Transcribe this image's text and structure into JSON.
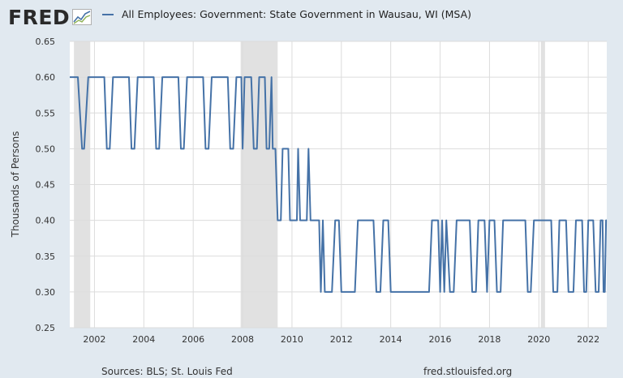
{
  "header": {
    "logo_text": "FRED",
    "series_title": "All Employees: Government: State Government in Wausau, WI (MSA)"
  },
  "footer": {
    "source": "Sources: BLS; St. Louis Fed",
    "url": "fred.stlouisfed.org"
  },
  "colors": {
    "series": "#4572a7",
    "recession": "#e1e1e1",
    "plot_background": "#ffffff",
    "page_background": "#e1e9f0",
    "gridline": "#dcdcdc"
  },
  "chart_data": {
    "type": "line",
    "title": "All Employees: Government: State Government in Wausau, WI (MSA)",
    "ylabel": "Thousands of Persons",
    "xlabel": "",
    "xlim": [
      2001.0,
      2022.75
    ],
    "ylim": [
      0.25,
      0.65
    ],
    "grid": true,
    "legend_position": "top",
    "x_ticks": [
      2002,
      2004,
      2006,
      2008,
      2010,
      2012,
      2014,
      2016,
      2018,
      2020,
      2022
    ],
    "y_ticks": [
      0.25,
      0.3,
      0.35,
      0.4,
      0.45,
      0.5,
      0.55,
      0.6,
      0.65
    ],
    "y_tick_labels": [
      "0.25",
      "0.30",
      "0.35",
      "0.40",
      "0.45",
      "0.50",
      "0.55",
      "0.60",
      "0.65"
    ],
    "recessions": [
      [
        2001.17,
        2001.83
      ],
      [
        2007.92,
        2009.42
      ],
      [
        2020.08,
        2020.25
      ]
    ],
    "series": [
      {
        "name": "All Employees: Government: State Government in Wausau, WI (MSA)",
        "points": [
          [
            2001.0,
            0.6
          ],
          [
            2001.33,
            0.6
          ],
          [
            2001.5,
            0.5
          ],
          [
            2001.58,
            0.5
          ],
          [
            2001.75,
            0.6
          ],
          [
            2002.4,
            0.6
          ],
          [
            2002.5,
            0.5
          ],
          [
            2002.62,
            0.5
          ],
          [
            2002.75,
            0.6
          ],
          [
            2003.4,
            0.6
          ],
          [
            2003.5,
            0.5
          ],
          [
            2003.62,
            0.5
          ],
          [
            2003.75,
            0.6
          ],
          [
            2004.4,
            0.6
          ],
          [
            2004.5,
            0.5
          ],
          [
            2004.62,
            0.5
          ],
          [
            2004.75,
            0.6
          ],
          [
            2005.4,
            0.6
          ],
          [
            2005.5,
            0.5
          ],
          [
            2005.62,
            0.5
          ],
          [
            2005.75,
            0.6
          ],
          [
            2006.4,
            0.6
          ],
          [
            2006.5,
            0.5
          ],
          [
            2006.62,
            0.5
          ],
          [
            2006.75,
            0.6
          ],
          [
            2007.4,
            0.6
          ],
          [
            2007.5,
            0.5
          ],
          [
            2007.62,
            0.5
          ],
          [
            2007.75,
            0.6
          ],
          [
            2007.95,
            0.6
          ],
          [
            2008.0,
            0.5
          ],
          [
            2008.08,
            0.6
          ],
          [
            2008.35,
            0.6
          ],
          [
            2008.45,
            0.5
          ],
          [
            2008.58,
            0.5
          ],
          [
            2008.67,
            0.6
          ],
          [
            2008.9,
            0.6
          ],
          [
            2008.97,
            0.5
          ],
          [
            2009.08,
            0.5
          ],
          [
            2009.17,
            0.6
          ],
          [
            2009.22,
            0.5
          ],
          [
            2009.33,
            0.5
          ],
          [
            2009.42,
            0.4
          ],
          [
            2009.55,
            0.4
          ],
          [
            2009.62,
            0.5
          ],
          [
            2009.85,
            0.5
          ],
          [
            2009.92,
            0.4
          ],
          [
            2010.2,
            0.4
          ],
          [
            2010.25,
            0.5
          ],
          [
            2010.33,
            0.4
          ],
          [
            2010.6,
            0.4
          ],
          [
            2010.67,
            0.5
          ],
          [
            2010.75,
            0.4
          ],
          [
            2011.1,
            0.4
          ],
          [
            2011.17,
            0.3
          ],
          [
            2011.25,
            0.4
          ],
          [
            2011.33,
            0.3
          ],
          [
            2011.62,
            0.3
          ],
          [
            2011.75,
            0.4
          ],
          [
            2011.9,
            0.4
          ],
          [
            2012.0,
            0.3
          ],
          [
            2012.55,
            0.3
          ],
          [
            2012.67,
            0.4
          ],
          [
            2013.3,
            0.4
          ],
          [
            2013.42,
            0.3
          ],
          [
            2013.58,
            0.3
          ],
          [
            2013.7,
            0.4
          ],
          [
            2013.9,
            0.4
          ],
          [
            2014.0,
            0.3
          ],
          [
            2015.55,
            0.3
          ],
          [
            2015.67,
            0.4
          ],
          [
            2015.92,
            0.4
          ],
          [
            2016.0,
            0.3
          ],
          [
            2016.08,
            0.4
          ],
          [
            2016.17,
            0.3
          ],
          [
            2016.25,
            0.4
          ],
          [
            2016.4,
            0.3
          ],
          [
            2016.55,
            0.3
          ],
          [
            2016.67,
            0.4
          ],
          [
            2017.2,
            0.4
          ],
          [
            2017.3,
            0.3
          ],
          [
            2017.45,
            0.3
          ],
          [
            2017.55,
            0.4
          ],
          [
            2017.8,
            0.4
          ],
          [
            2017.9,
            0.3
          ],
          [
            2018.0,
            0.4
          ],
          [
            2018.2,
            0.4
          ],
          [
            2018.3,
            0.3
          ],
          [
            2018.45,
            0.3
          ],
          [
            2018.55,
            0.4
          ],
          [
            2019.45,
            0.4
          ],
          [
            2019.55,
            0.3
          ],
          [
            2019.67,
            0.3
          ],
          [
            2019.8,
            0.4
          ],
          [
            2020.5,
            0.4
          ],
          [
            2020.58,
            0.3
          ],
          [
            2020.75,
            0.3
          ],
          [
            2020.83,
            0.4
          ],
          [
            2021.1,
            0.4
          ],
          [
            2021.2,
            0.3
          ],
          [
            2021.4,
            0.3
          ],
          [
            2021.5,
            0.4
          ],
          [
            2021.75,
            0.4
          ],
          [
            2021.83,
            0.3
          ],
          [
            2021.92,
            0.3
          ],
          [
            2022.0,
            0.4
          ],
          [
            2022.2,
            0.4
          ],
          [
            2022.3,
            0.3
          ],
          [
            2022.42,
            0.3
          ],
          [
            2022.5,
            0.4
          ],
          [
            2022.58,
            0.4
          ],
          [
            2022.62,
            0.3
          ],
          [
            2022.67,
            0.3
          ],
          [
            2022.72,
            0.4
          ],
          [
            2022.75,
            0.4
          ]
        ]
      }
    ]
  }
}
